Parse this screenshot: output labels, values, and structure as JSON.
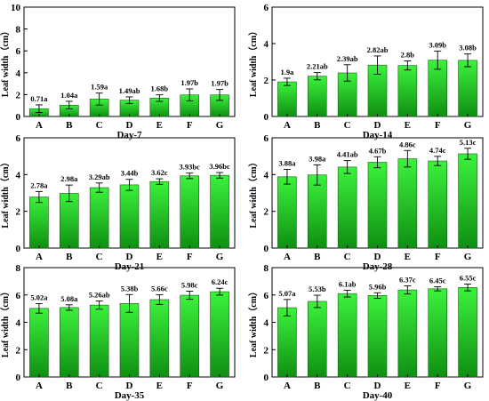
{
  "chart_data": [
    {
      "type": "bar",
      "xlabel": "Day-7",
      "ylabel": "Leaf width（cm）",
      "ylim": [
        0,
        10
      ],
      "yticks": [
        0,
        2,
        4,
        6,
        8,
        10
      ],
      "categories": [
        "A",
        "B",
        "C",
        "D",
        "E",
        "F",
        "G"
      ],
      "values": [
        0.71,
        1.04,
        1.59,
        1.49,
        1.68,
        1.97,
        1.97
      ],
      "errors": [
        0.35,
        0.35,
        0.55,
        0.3,
        0.3,
        0.55,
        0.5
      ],
      "labels": [
        "0.71a",
        "1.04a",
        "1.59a",
        "1.49ab",
        "1.68b",
        "1.97b",
        "1.97b"
      ]
    },
    {
      "type": "bar",
      "xlabel": "Day-14",
      "ylabel": "Leaf width（cm）",
      "ylim": [
        0,
        6
      ],
      "yticks": [
        0,
        2,
        4,
        6
      ],
      "categories": [
        "A",
        "B",
        "C",
        "D",
        "E",
        "F",
        "G"
      ],
      "values": [
        1.9,
        2.21,
        2.39,
        2.82,
        2.8,
        3.09,
        3.08
      ],
      "errors": [
        0.2,
        0.2,
        0.45,
        0.5,
        0.25,
        0.5,
        0.35
      ],
      "labels": [
        "1.9a",
        "2.21ab",
        "2.39ab",
        "2.82ab",
        "2.8b",
        "3.09b",
        "3.08b"
      ]
    },
    {
      "type": "bar",
      "xlabel": "Day-21",
      "ylabel": "Leaf width（cm）",
      "ylim": [
        0,
        6
      ],
      "yticks": [
        0,
        2,
        4,
        6
      ],
      "categories": [
        "A",
        "B",
        "C",
        "D",
        "E",
        "F",
        "G"
      ],
      "values": [
        2.78,
        2.98,
        3.29,
        3.44,
        3.62,
        3.93,
        3.96
      ],
      "errors": [
        0.3,
        0.45,
        0.25,
        0.3,
        0.15,
        0.15,
        0.15
      ],
      "labels": [
        "2.78a",
        "2.98a",
        "3.29ab",
        "3.44b",
        "3.62c",
        "3.93bc",
        "3.96bc"
      ]
    },
    {
      "type": "bar",
      "xlabel": "Day-28",
      "ylabel": "Leaf width（cm）",
      "ylim": [
        0,
        6
      ],
      "yticks": [
        0,
        2,
        4,
        6
      ],
      "categories": [
        "A",
        "B",
        "C",
        "D",
        "E",
        "F",
        "G"
      ],
      "values": [
        3.88,
        3.98,
        4.41,
        4.67,
        4.86,
        4.74,
        5.13
      ],
      "errors": [
        0.4,
        0.55,
        0.35,
        0.3,
        0.45,
        0.25,
        0.3
      ],
      "labels": [
        "3.88a",
        "3.98a",
        "4.41ab",
        "4.67b",
        "4.86c",
        "4.74c",
        "5.13c"
      ]
    },
    {
      "type": "bar",
      "xlabel": "Day-35",
      "ylabel": "Leaf width（cm）",
      "ylim": [
        0,
        8
      ],
      "yticks": [
        0,
        2,
        4,
        6,
        8
      ],
      "categories": [
        "A",
        "B",
        "C",
        "D",
        "E",
        "F",
        "G"
      ],
      "values": [
        5.02,
        5.08,
        5.26,
        5.38,
        5.66,
        5.98,
        6.24
      ],
      "errors": [
        0.35,
        0.2,
        0.3,
        0.65,
        0.35,
        0.3,
        0.25
      ],
      "labels": [
        "5.02a",
        "5.08a",
        "5.26ab",
        "5.38b",
        "5.66c",
        "5.98c",
        "6.24c"
      ]
    },
    {
      "type": "bar",
      "xlabel": "Day-40",
      "ylabel": "Leaf width（cm）",
      "ylim": [
        0,
        8
      ],
      "yticks": [
        0,
        2,
        4,
        6,
        8
      ],
      "categories": [
        "A",
        "B",
        "C",
        "D",
        "E",
        "F",
        "G"
      ],
      "values": [
        5.07,
        5.53,
        6.1,
        5.96,
        6.37,
        6.45,
        6.55
      ],
      "errors": [
        0.6,
        0.45,
        0.25,
        0.2,
        0.3,
        0.15,
        0.25
      ],
      "labels": [
        "5.07a",
        "5.53b",
        "6.1ab",
        "5.96b",
        "6.37c",
        "6.45c",
        "6.55c"
      ]
    }
  ]
}
